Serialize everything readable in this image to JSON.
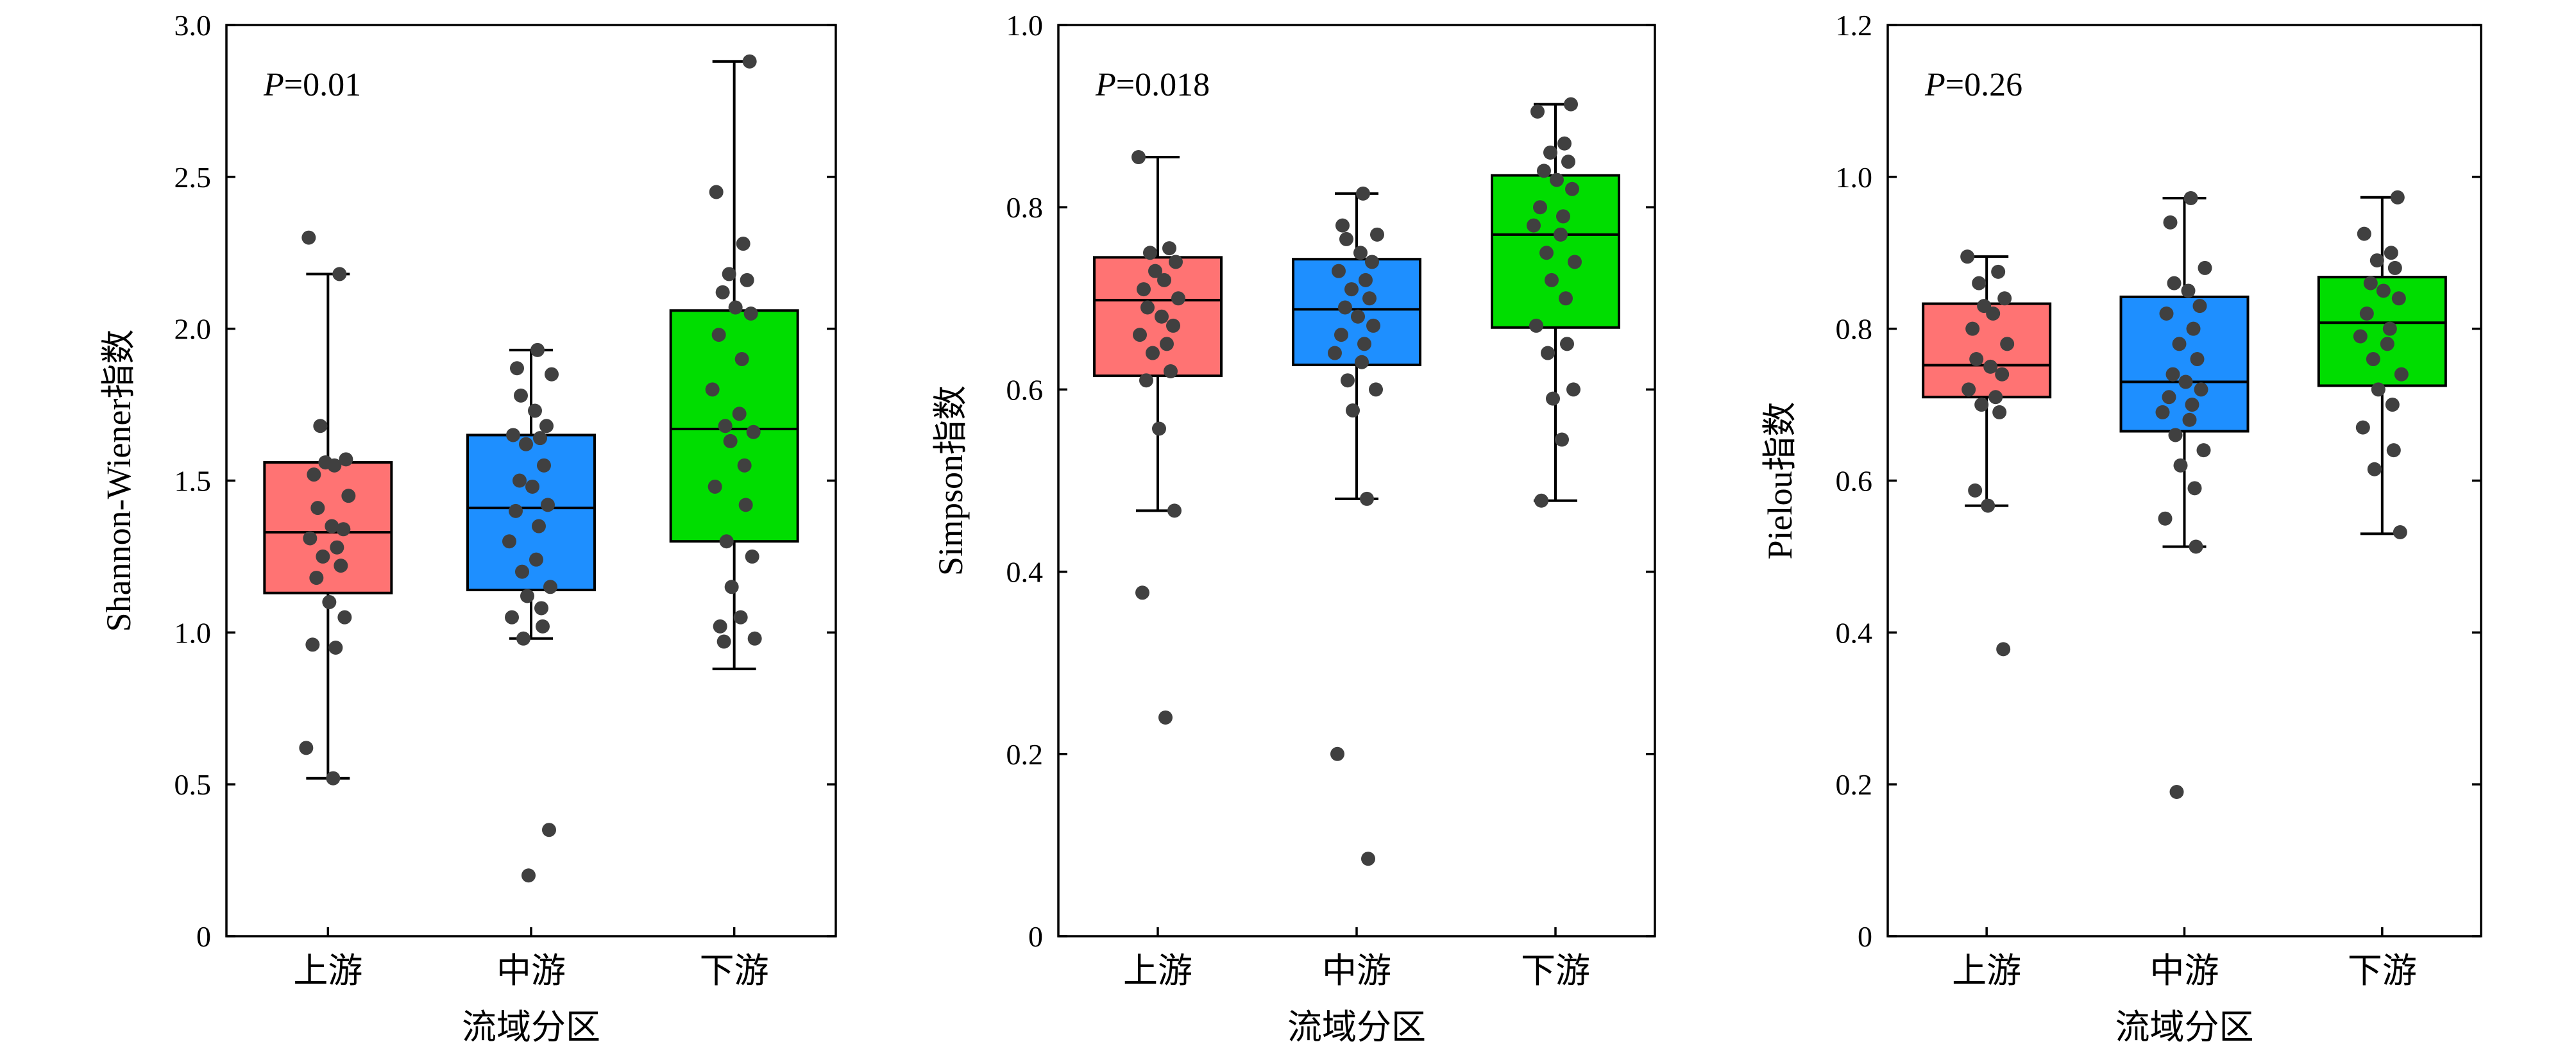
{
  "colors": {
    "upstream": "#FF7373",
    "midstream": "#1E8FFF",
    "downstream": "#00DD00",
    "points": "#404040"
  },
  "chart_data": [
    {
      "type": "box",
      "xlabel": "流域分区",
      "ylabel": "Shannon-Wiener指数",
      "annotation_prefix": "P",
      "annotation_value": "=0.01",
      "ylim": [
        0,
        3.0
      ],
      "yticks": [
        0,
        0.5,
        1.0,
        1.5,
        2.0,
        2.5,
        3.0
      ],
      "ytick_labels": [
        "0",
        "0.5",
        "1.0",
        "1.5",
        "2.0",
        "2.5",
        "3.0"
      ],
      "categories": [
        "上游",
        "中游",
        "下游"
      ],
      "boxes": [
        {
          "q1": 1.13,
          "median": 1.33,
          "q3": 1.56,
          "whisker_low": 0.52,
          "whisker_high": 2.18
        },
        {
          "q1": 1.14,
          "median": 1.41,
          "q3": 1.65,
          "whisker_low": 0.98,
          "whisker_high": 1.93
        },
        {
          "q1": 1.3,
          "median": 1.67,
          "q3": 2.06,
          "whisker_low": 0.88,
          "whisker_high": 2.88
        }
      ],
      "points": [
        [
          2.3,
          2.18,
          1.68,
          1.57,
          1.56,
          1.55,
          1.52,
          1.45,
          1.41,
          1.35,
          1.34,
          1.31,
          1.28,
          1.25,
          1.22,
          1.18,
          1.1,
          1.05,
          0.96,
          0.95,
          0.62,
          0.52
        ],
        [
          1.93,
          1.87,
          1.85,
          1.78,
          1.73,
          1.68,
          1.65,
          1.64,
          1.62,
          1.55,
          1.5,
          1.48,
          1.42,
          1.4,
          1.35,
          1.3,
          1.24,
          1.2,
          1.15,
          1.12,
          1.08,
          1.05,
          1.02,
          0.98,
          0.35,
          0.2
        ],
        [
          2.88,
          2.45,
          2.28,
          2.18,
          2.16,
          2.12,
          2.07,
          2.05,
          1.98,
          1.9,
          1.8,
          1.72,
          1.68,
          1.66,
          1.63,
          1.55,
          1.48,
          1.42,
          1.3,
          1.25,
          1.15,
          1.05,
          1.02,
          0.98,
          0.97
        ]
      ]
    },
    {
      "type": "box",
      "xlabel": "流域分区",
      "ylabel": "Simpson指数",
      "annotation_prefix": "P",
      "annotation_value": "=0.018",
      "ylim": [
        0,
        1.0
      ],
      "yticks": [
        0,
        0.2,
        0.4,
        0.6,
        0.8,
        1.0
      ],
      "ytick_labels": [
        "0",
        "0.2",
        "0.4",
        "0.6",
        "0.8",
        "1.0"
      ],
      "categories": [
        "上游",
        "中游",
        "下游"
      ],
      "boxes": [
        {
          "q1": 0.615,
          "median": 0.698,
          "q3": 0.745,
          "whisker_low": 0.467,
          "whisker_high": 0.855
        },
        {
          "q1": 0.627,
          "median": 0.688,
          "q3": 0.743,
          "whisker_low": 0.48,
          "whisker_high": 0.815
        },
        {
          "q1": 0.668,
          "median": 0.77,
          "q3": 0.835,
          "whisker_low": 0.478,
          "whisker_high": 0.913
        }
      ],
      "points": [
        [
          0.855,
          0.755,
          0.75,
          0.74,
          0.73,
          0.72,
          0.71,
          0.7,
          0.69,
          0.68,
          0.67,
          0.66,
          0.65,
          0.64,
          0.62,
          0.61,
          0.557,
          0.467,
          0.377,
          0.24
        ],
        [
          0.815,
          0.78,
          0.77,
          0.765,
          0.75,
          0.74,
          0.73,
          0.72,
          0.71,
          0.7,
          0.69,
          0.68,
          0.67,
          0.66,
          0.65,
          0.64,
          0.63,
          0.61,
          0.6,
          0.577,
          0.48,
          0.2,
          0.085
        ],
        [
          0.913,
          0.905,
          0.87,
          0.86,
          0.85,
          0.84,
          0.83,
          0.82,
          0.8,
          0.79,
          0.78,
          0.77,
          0.75,
          0.74,
          0.72,
          0.7,
          0.67,
          0.65,
          0.64,
          0.6,
          0.59,
          0.545,
          0.478
        ]
      ]
    },
    {
      "type": "box",
      "xlabel": "流域分区",
      "ylabel": "Pielou指数",
      "annotation_prefix": "P",
      "annotation_value": "=0.26",
      "ylim": [
        0,
        1.2
      ],
      "yticks": [
        0,
        0.2,
        0.4,
        0.6,
        0.8,
        1.0,
        1.2
      ],
      "ytick_labels": [
        "0",
        "0.2",
        "0.4",
        "0.6",
        "0.8",
        "1.0",
        "1.2"
      ],
      "categories": [
        "上游",
        "中游",
        "下游"
      ],
      "boxes": [
        {
          "q1": 0.71,
          "median": 0.752,
          "q3": 0.833,
          "whisker_low": 0.567,
          "whisker_high": 0.895
        },
        {
          "q1": 0.665,
          "median": 0.73,
          "q3": 0.842,
          "whisker_low": 0.513,
          "whisker_high": 0.972
        },
        {
          "q1": 0.725,
          "median": 0.808,
          "q3": 0.868,
          "whisker_low": 0.53,
          "whisker_high": 0.973
        }
      ],
      "points": [
        [
          0.895,
          0.875,
          0.86,
          0.84,
          0.83,
          0.82,
          0.8,
          0.78,
          0.76,
          0.75,
          0.74,
          0.72,
          0.71,
          0.7,
          0.69,
          0.587,
          0.567,
          0.378
        ],
        [
          0.972,
          0.94,
          0.88,
          0.86,
          0.85,
          0.83,
          0.82,
          0.8,
          0.78,
          0.76,
          0.74,
          0.73,
          0.72,
          0.71,
          0.7,
          0.69,
          0.68,
          0.66,
          0.64,
          0.62,
          0.59,
          0.55,
          0.513,
          0.19
        ],
        [
          0.973,
          0.925,
          0.9,
          0.89,
          0.88,
          0.86,
          0.85,
          0.84,
          0.82,
          0.8,
          0.79,
          0.78,
          0.76,
          0.74,
          0.72,
          0.7,
          0.67,
          0.64,
          0.615,
          0.532
        ]
      ]
    }
  ]
}
